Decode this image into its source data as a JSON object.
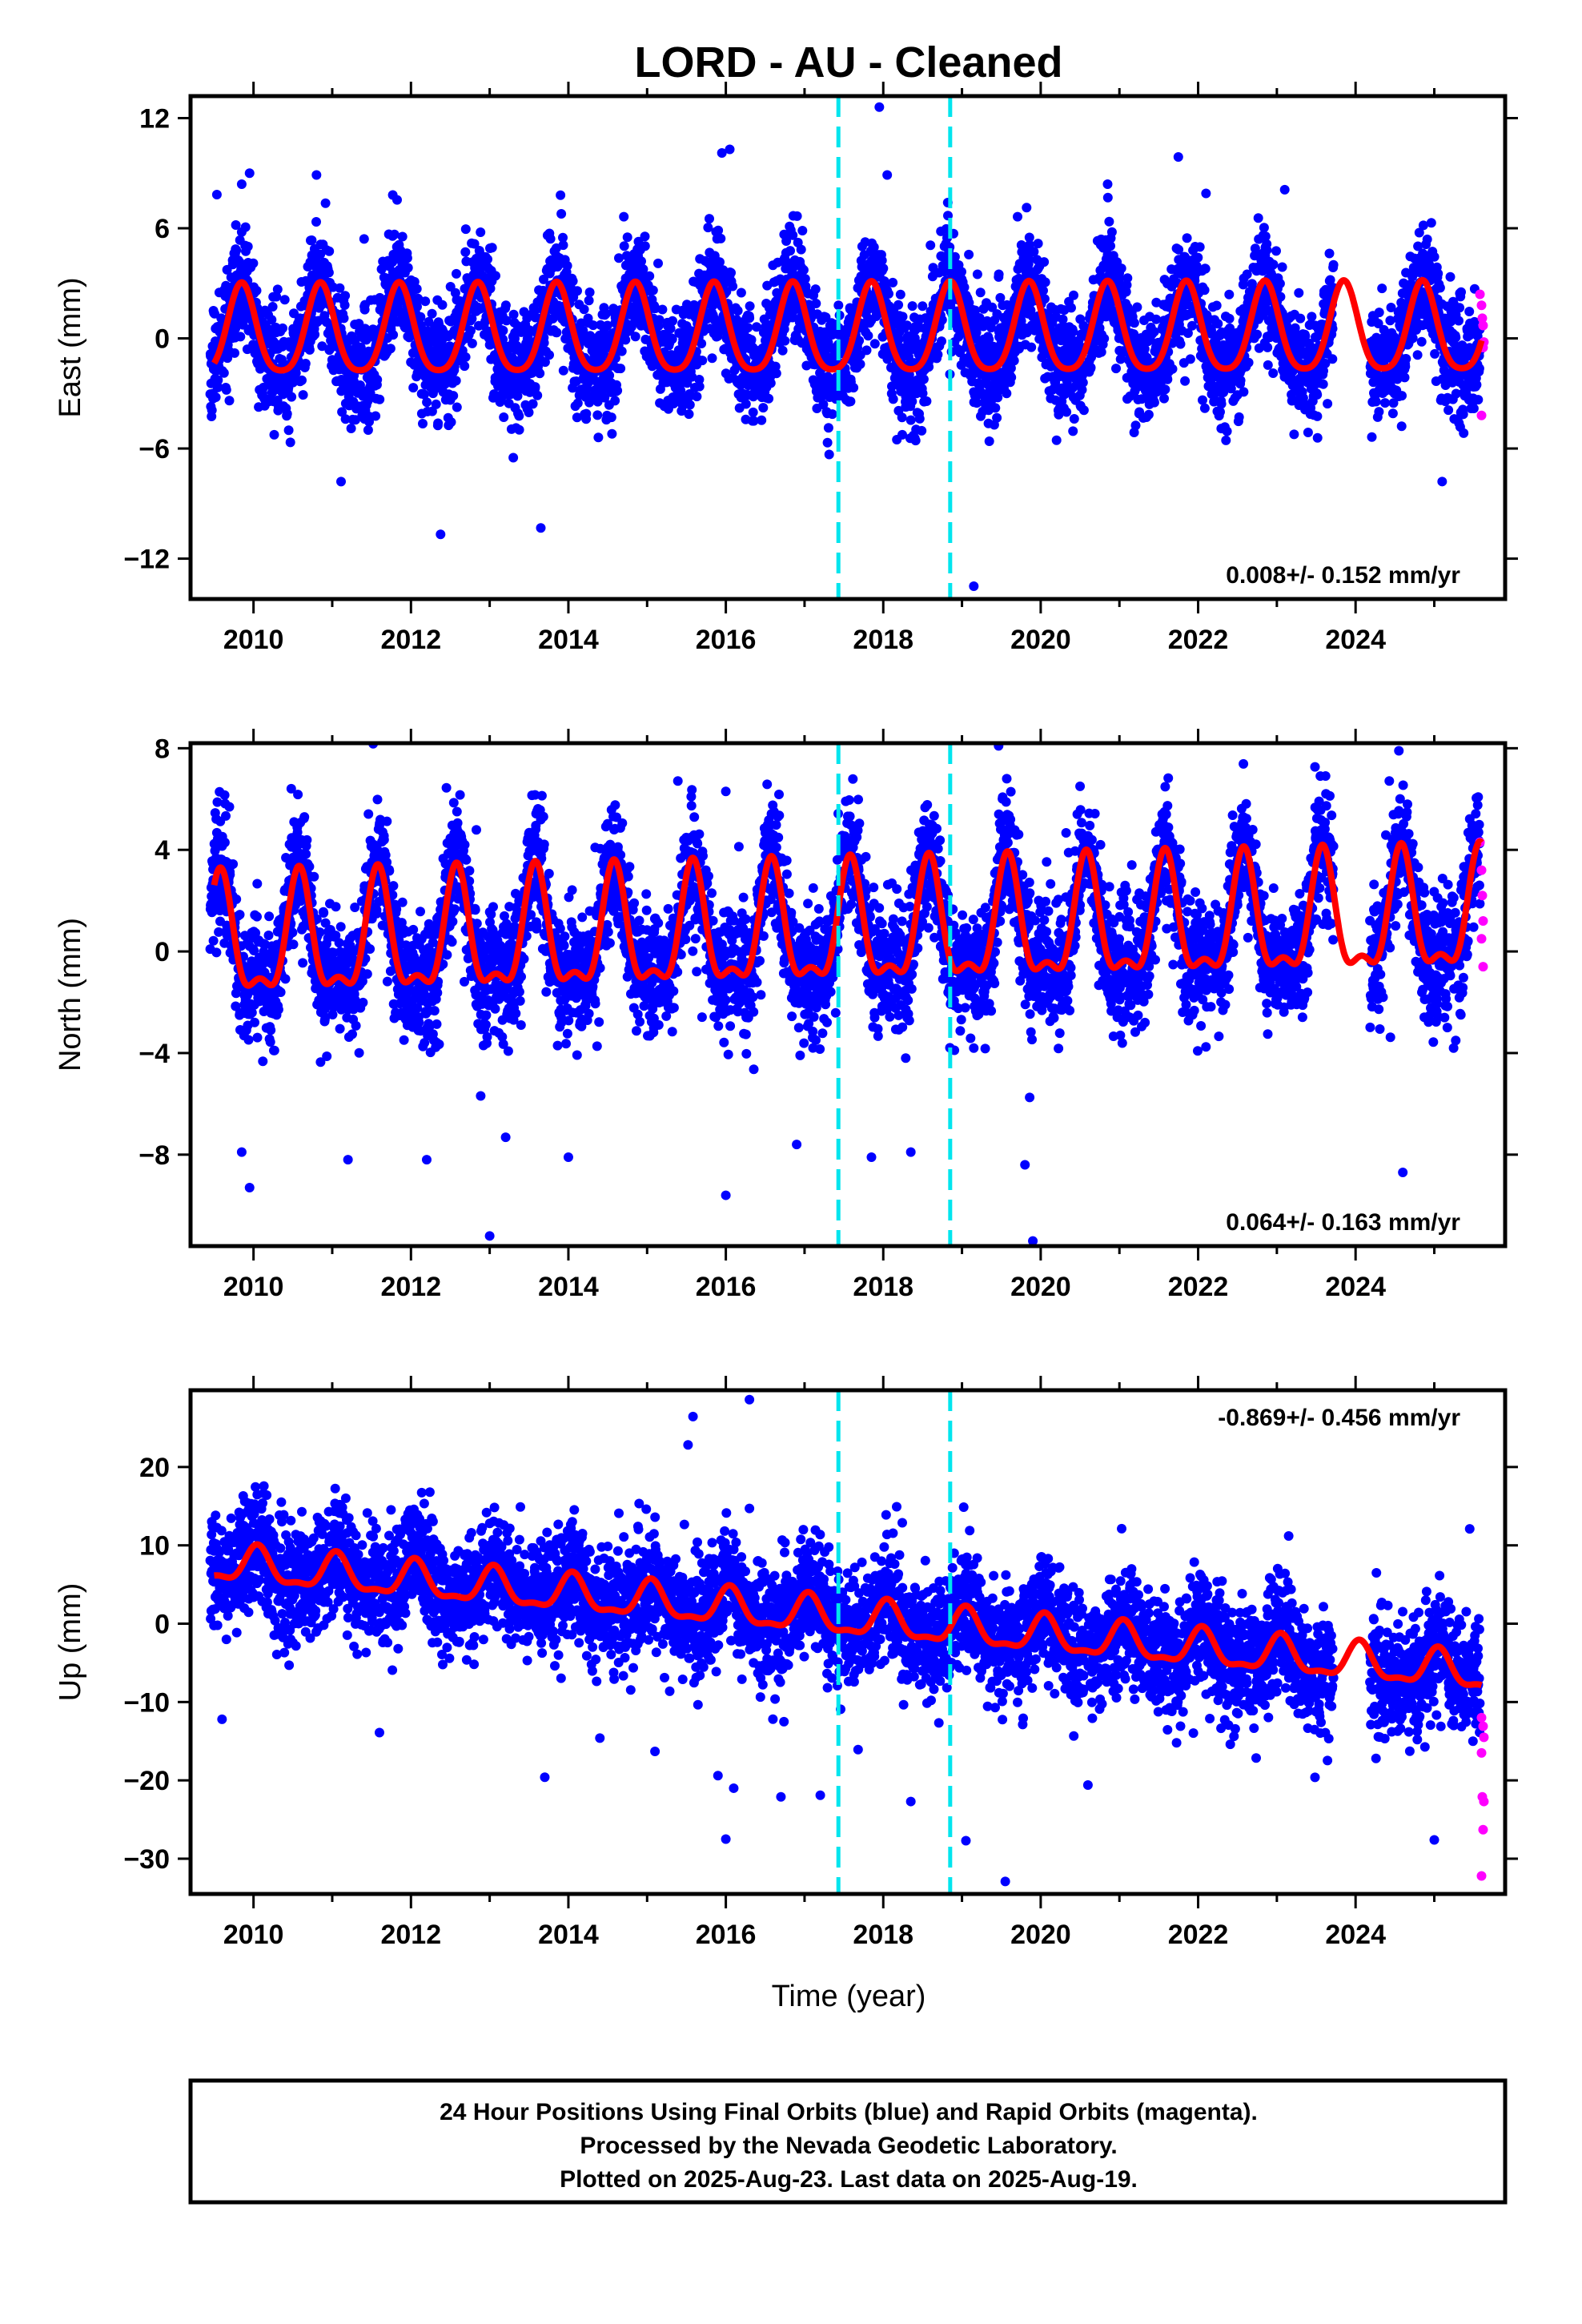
{
  "chart_data": {
    "type": "scatter",
    "title": "LORD  - AU - Cleaned",
    "xlabel": "Time (year)",
    "xlim": [
      2009.2,
      2025.9
    ],
    "xticks": [
      2010,
      2012,
      2014,
      2016,
      2018,
      2020,
      2022,
      2024
    ],
    "xticklabels": [
      "2010",
      "2012",
      "2014",
      "2016",
      "2018",
      "2020",
      "2022",
      "2024"
    ],
    "vertical_lines": [
      2017.43,
      2018.85
    ],
    "colors": {
      "final": "#0000ff",
      "rapid": "#ff00ff",
      "model": "#ff0000",
      "events": "#00e5ee"
    },
    "panels": [
      {
        "name": "east",
        "ylabel": "East (mm)",
        "ylim": [
          -14.2,
          13.2
        ],
        "yticks": [
          12,
          6,
          0,
          -6,
          -12
        ],
        "yticklabels": [
          "12",
          "6",
          "0",
          "−6",
          "−12"
        ],
        "rate_label": "0.008+/- 0.152 mm/yr",
        "rate_position": "bottom-right",
        "model": {
          "offset": 0.2,
          "trend": 0.008,
          "annual_amp": 2.4,
          "annual_peak": 0.85,
          "semi_amp": 0.45,
          "semi_peak": 0.35
        },
        "scatter": {
          "noise": 1.5,
          "outlier_rate": 0.01,
          "outlier_amp": 3.5,
          "seed": 11
        },
        "notable_points": [
          [
            2009.85,
            8.4
          ],
          [
            2009.95,
            9.0
          ],
          [
            2010.8,
            8.9
          ],
          [
            2013.9,
            7.8
          ],
          [
            2015.95,
            10.1
          ],
          [
            2016.05,
            10.3
          ],
          [
            2017.95,
            12.6
          ],
          [
            2018.05,
            8.9
          ],
          [
            2020.85,
            8.4
          ],
          [
            2022.1,
            7.9
          ],
          [
            2023.1,
            8.1
          ],
          [
            2025.1,
            -7.8
          ],
          [
            2013.3,
            -6.5
          ],
          [
            2019.15,
            -13.5
          ]
        ],
        "rapid_points": [
          [
            2025.58,
            2.4
          ],
          [
            2025.6,
            1.8
          ],
          [
            2025.61,
            1.1
          ],
          [
            2025.62,
            0.7
          ],
          [
            2025.63,
            -0.2
          ],
          [
            2025.6,
            -4.2
          ],
          [
            2025.62,
            -0.5
          ]
        ]
      },
      {
        "name": "north",
        "ylabel": "North (mm)",
        "ylim": [
          -11.6,
          8.2
        ],
        "yticks": [
          8,
          4,
          0,
          -4,
          -8
        ],
        "yticklabels": [
          "8",
          "4",
          "0",
          "−4",
          "−8"
        ],
        "rate_label": "0.064+/- 0.163 mm/yr",
        "rate_position": "bottom-right",
        "model": {
          "offset": 0.2,
          "trend": 0.064,
          "annual_amp": 2.2,
          "annual_peak": 0.58,
          "semi_amp": 0.9,
          "semi_peak": 0.58
        },
        "scatter": {
          "noise": 1.2,
          "outlier_rate": 0.012,
          "outlier_amp": 3.0,
          "seed": 23
        },
        "notable_points": [
          [
            2009.95,
            -9.3
          ],
          [
            2009.85,
            -7.9
          ],
          [
            2013.0,
            -11.2
          ],
          [
            2016.0,
            -9.6
          ],
          [
            2019.9,
            -11.4
          ],
          [
            2024.6,
            -8.7
          ],
          [
            2024.55,
            7.9
          ],
          [
            2016.0,
            6.3
          ],
          [
            2020.5,
            6.5
          ],
          [
            2011.2,
            -8.2
          ],
          [
            2012.2,
            -8.2
          ],
          [
            2014.0,
            -8.1
          ],
          [
            2016.9,
            -7.6
          ],
          [
            2017.85,
            -8.1
          ],
          [
            2018.35,
            -7.9
          ],
          [
            2019.8,
            -8.4
          ]
        ],
        "rapid_points": [
          [
            2025.58,
            4.3
          ],
          [
            2025.6,
            3.2
          ],
          [
            2025.61,
            2.2
          ],
          [
            2025.62,
            1.2
          ],
          [
            2025.6,
            0.5
          ],
          [
            2025.62,
            -0.6
          ]
        ]
      },
      {
        "name": "up",
        "ylabel": "Up (mm)",
        "ylim": [
          -34.5,
          29.8
        ],
        "yticks": [
          20,
          10,
          0,
          -10,
          -20,
          -30
        ],
        "yticklabels": [
          "20",
          "10",
          "0",
          "−10",
          "−20",
          "−30"
        ],
        "rate_label": "-0.869+/- 0.456 mm/yr",
        "rate_position": "top-right",
        "model": {
          "offset": 7.6,
          "trend": -0.869,
          "annual_amp": 2.2,
          "annual_peak": 0.05,
          "semi_amp": 0.8,
          "semi_peak": 0.05
        },
        "scatter": {
          "noise": 3.6,
          "outlier_rate": 0.01,
          "outlier_amp": 8.0,
          "seed": 37
        },
        "notable_points": [
          [
            2016.3,
            28.6
          ],
          [
            2009.6,
            -12.2
          ],
          [
            2011.6,
            -13.9
          ],
          [
            2013.7,
            -19.6
          ],
          [
            2014.4,
            -14.6
          ],
          [
            2015.1,
            -16.3
          ],
          [
            2015.9,
            -19.4
          ],
          [
            2016.0,
            -27.5
          ],
          [
            2016.1,
            -21.0
          ],
          [
            2016.7,
            -22.1
          ],
          [
            2017.2,
            -21.9
          ],
          [
            2018.35,
            -22.7
          ],
          [
            2019.05,
            -27.7
          ],
          [
            2019.55,
            -32.9
          ],
          [
            2020.6,
            -20.6
          ],
          [
            2025.0,
            -27.6
          ],
          [
            2025.45,
            12.1
          ],
          [
            2023.15,
            11.2
          ]
        ],
        "rapid_points": [
          [
            2025.6,
            -12.0
          ],
          [
            2025.62,
            -13.1
          ],
          [
            2025.6,
            -16.5
          ],
          [
            2025.61,
            -22.1
          ],
          [
            2025.63,
            -22.7
          ],
          [
            2025.62,
            -26.3
          ],
          [
            2025.6,
            -32.2
          ],
          [
            2025.63,
            -14.5
          ]
        ]
      }
    ]
  },
  "footer": {
    "line1": "24 Hour Positions Using Final Orbits (blue) and Rapid Orbits (magenta).",
    "line2": "Processed by the Nevada Geodetic Laboratory.",
    "line3": "Plotted on 2025-Aug-23. Last data on 2025-Aug-19."
  }
}
